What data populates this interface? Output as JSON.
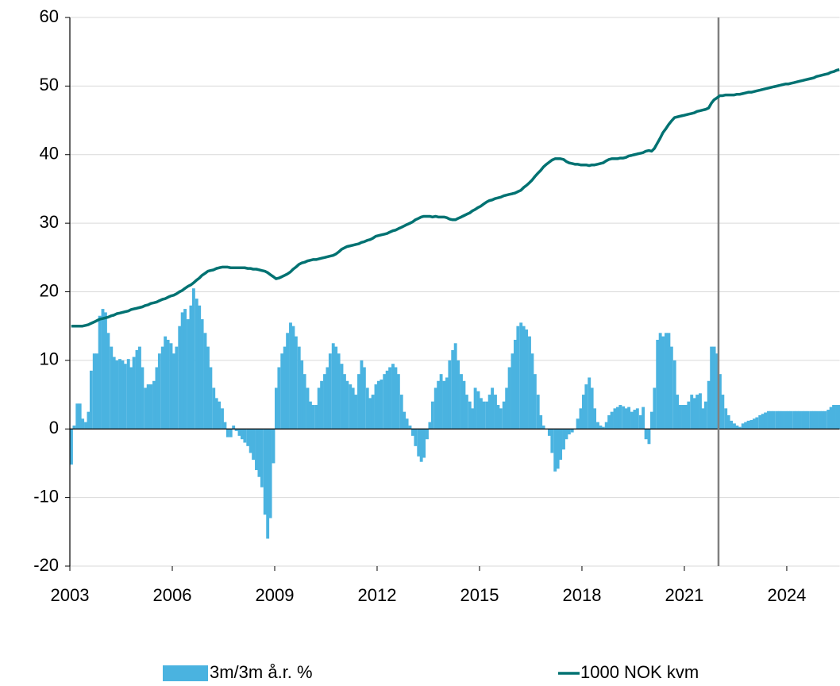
{
  "chart_data": {
    "type": "combo",
    "x": [
      2003,
      2003.08,
      2003.17,
      2003.25,
      2003.33,
      2003.42,
      2003.5,
      2003.58,
      2003.67,
      2003.75,
      2003.83,
      2003.92,
      2004,
      2004.08,
      2004.17,
      2004.25,
      2004.33,
      2004.42,
      2004.5,
      2004.58,
      2004.67,
      2004.75,
      2004.83,
      2004.92,
      2005,
      2005.08,
      2005.17,
      2005.25,
      2005.33,
      2005.42,
      2005.5,
      2005.58,
      2005.67,
      2005.75,
      2005.83,
      2005.92,
      2006,
      2006.08,
      2006.17,
      2006.25,
      2006.33,
      2006.42,
      2006.5,
      2006.58,
      2006.67,
      2006.75,
      2006.83,
      2006.92,
      2007,
      2007.08,
      2007.17,
      2007.25,
      2007.33,
      2007.42,
      2007.5,
      2007.58,
      2007.67,
      2007.75,
      2007.83,
      2007.92,
      2008,
      2008.08,
      2008.17,
      2008.25,
      2008.33,
      2008.42,
      2008.5,
      2008.58,
      2008.67,
      2008.75,
      2008.83,
      2008.92,
      2009,
      2009.08,
      2009.17,
      2009.25,
      2009.33,
      2009.42,
      2009.5,
      2009.58,
      2009.67,
      2009.75,
      2009.83,
      2009.92,
      2010,
      2010.08,
      2010.17,
      2010.25,
      2010.33,
      2010.42,
      2010.5,
      2010.58,
      2010.67,
      2010.75,
      2010.83,
      2010.92,
      2011,
      2011.08,
      2011.17,
      2011.25,
      2011.33,
      2011.42,
      2011.5,
      2011.58,
      2011.67,
      2011.75,
      2011.83,
      2011.92,
      2012,
      2012.08,
      2012.17,
      2012.25,
      2012.33,
      2012.42,
      2012.5,
      2012.58,
      2012.67,
      2012.75,
      2012.83,
      2012.92,
      2013,
      2013.08,
      2013.17,
      2013.25,
      2013.33,
      2013.42,
      2013.5,
      2013.58,
      2013.67,
      2013.75,
      2013.83,
      2013.92,
      2014,
      2014.08,
      2014.17,
      2014.25,
      2014.33,
      2014.42,
      2014.5,
      2014.58,
      2014.67,
      2014.75,
      2014.83,
      2014.92,
      2015,
      2015.08,
      2015.17,
      2015.25,
      2015.33,
      2015.42,
      2015.5,
      2015.58,
      2015.67,
      2015.75,
      2015.83,
      2015.92,
      2016,
      2016.08,
      2016.17,
      2016.25,
      2016.33,
      2016.42,
      2016.5,
      2016.58,
      2016.67,
      2016.75,
      2016.83,
      2016.92,
      2017,
      2017.08,
      2017.17,
      2017.25,
      2017.33,
      2017.42,
      2017.5,
      2017.58,
      2017.67,
      2017.75,
      2017.83,
      2017.92,
      2018,
      2018.08,
      2018.17,
      2018.25,
      2018.33,
      2018.42,
      2018.5,
      2018.58,
      2018.67,
      2018.75,
      2018.83,
      2018.92,
      2019,
      2019.08,
      2019.17,
      2019.25,
      2019.33,
      2019.42,
      2019.5,
      2019.58,
      2019.67,
      2019.75,
      2019.83,
      2019.92,
      2020,
      2020.08,
      2020.17,
      2020.25,
      2020.33,
      2020.42,
      2020.5,
      2020.58,
      2020.67,
      2020.75,
      2020.83,
      2020.92,
      2021,
      2021.08,
      2021.17,
      2021.25,
      2021.33,
      2021.42,
      2021.5,
      2021.58,
      2021.67,
      2021.75,
      2021.83,
      2021.92,
      2022,
      2022.08,
      2022.17,
      2022.25,
      2022.33,
      2022.42,
      2022.5,
      2022.58,
      2022.67,
      2022.75,
      2022.83,
      2022.92,
      2023,
      2023.08,
      2023.17,
      2023.25,
      2023.33,
      2023.42,
      2023.5,
      2023.58,
      2023.67,
      2023.75,
      2023.83,
      2023.92,
      2024,
      2024.08,
      2024.17,
      2024.25,
      2024.33,
      2024.42,
      2024.5,
      2024.58,
      2024.67,
      2024.75,
      2024.83,
      2024.92,
      2025,
      2025.08,
      2025.17,
      2025.25,
      2025.33,
      2025.42,
      2025.5
    ],
    "series": [
      {
        "name": "3m/3m å.r. %",
        "type": "bar",
        "color": "#4ab3e0",
        "values": [
          -5.2,
          0.5,
          3.7,
          3.7,
          1.5,
          1,
          2.5,
          8.5,
          11,
          11,
          16.5,
          17.5,
          17,
          14,
          12,
          10.5,
          10,
          10.2,
          10,
          9.5,
          10.2,
          9,
          10.5,
          11.5,
          12,
          9,
          6,
          6.5,
          6.5,
          7,
          9,
          11,
          12,
          13.5,
          13,
          12.5,
          11,
          12,
          15,
          17,
          17.5,
          16,
          18,
          20.5,
          19,
          18,
          16,
          14,
          12,
          9,
          6,
          4.5,
          4,
          3,
          1,
          -1.2,
          -1.2,
          0.5,
          -0.3,
          -1,
          -1.5,
          -2,
          -2.5,
          -3.5,
          -4.5,
          -6,
          -7,
          -8.5,
          -12.5,
          -16,
          -13,
          -5,
          6,
          9,
          11,
          12,
          14,
          15.5,
          15,
          13.5,
          12,
          10,
          8,
          6,
          4,
          3.5,
          3.5,
          6,
          7,
          8,
          9,
          11,
          12.5,
          12,
          11,
          9.5,
          8,
          7,
          6.5,
          6,
          5,
          8,
          10,
          9,
          6,
          4.5,
          5,
          6.5,
          7,
          7.2,
          8,
          8.5,
          9,
          9.5,
          9,
          8,
          5,
          2.5,
          1.5,
          0.5,
          -1,
          -2.5,
          -4,
          -4.8,
          -4.2,
          -1.5,
          1,
          4,
          6,
          7,
          8,
          7,
          7.5,
          10,
          11.5,
          12.5,
          10,
          8,
          7,
          5,
          4,
          3,
          6,
          5.5,
          4.5,
          4,
          4,
          5,
          6,
          5,
          3.5,
          3,
          4,
          6,
          9,
          11,
          13,
          15,
          15.5,
          15,
          14.5,
          13.5,
          11,
          8,
          5,
          2,
          0.5,
          0,
          -1,
          -3.5,
          -6.2,
          -5.8,
          -4.5,
          -3,
          -1.5,
          -0.8,
          -0.5,
          0,
          1.5,
          3,
          5,
          6.5,
          7.5,
          6,
          3,
          1,
          0.5,
          0.3,
          1,
          2,
          2.5,
          3,
          3.2,
          3.5,
          3.3,
          3,
          3.2,
          2.5,
          2.8,
          3,
          2,
          3.2,
          -1.5,
          -2.2,
          2.5,
          6,
          13,
          14,
          13.5,
          14,
          14,
          12,
          10,
          5,
          3.5,
          3.5,
          3.5,
          4,
          5,
          4.5,
          5,
          5.2,
          3,
          4,
          7,
          12,
          12,
          11,
          8,
          5,
          3,
          2,
          1.2,
          0.8,
          0.5,
          0.3,
          0.8,
          1,
          1.2,
          1.3,
          1.5,
          1.7,
          2,
          2.2,
          2.4,
          2.6,
          2.6,
          2.6,
          2.6,
          2.6,
          2.6,
          2.6,
          2.6,
          2.6,
          2.6,
          2.6,
          2.6,
          2.6,
          2.6,
          2.6,
          2.6,
          2.6,
          2.6,
          2.6,
          2.6,
          2.6,
          2.8,
          3.2,
          3.5,
          3.5,
          3.5
        ]
      },
      {
        "name": "1000 NOK kvm",
        "type": "line",
        "color": "#007272",
        "values": [
          15,
          15,
          15,
          15,
          15,
          15.1,
          15.2,
          15.4,
          15.6,
          15.8,
          16,
          16.1,
          16.2,
          16.3,
          16.5,
          16.6,
          16.8,
          16.9,
          17,
          17.1,
          17.2,
          17.4,
          17.5,
          17.6,
          17.7,
          17.8,
          18,
          18.1,
          18.3,
          18.4,
          18.5,
          18.7,
          18.9,
          19,
          19.2,
          19.4,
          19.5,
          19.7,
          20,
          20.2,
          20.5,
          20.8,
          21,
          21.3,
          21.7,
          22,
          22.4,
          22.7,
          23,
          23.1,
          23.2,
          23.4,
          23.5,
          23.6,
          23.6,
          23.6,
          23.5,
          23.5,
          23.5,
          23.5,
          23.5,
          23.5,
          23.4,
          23.4,
          23.3,
          23.3,
          23.2,
          23.1,
          23,
          22.8,
          22.5,
          22.2,
          21.9,
          22,
          22.2,
          22.4,
          22.6,
          22.9,
          23.3,
          23.6,
          24,
          24.2,
          24.3,
          24.5,
          24.6,
          24.7,
          24.7,
          24.8,
          24.9,
          25,
          25.1,
          25.2,
          25.3,
          25.5,
          25.8,
          26.2,
          26.4,
          26.6,
          26.7,
          26.8,
          26.9,
          27,
          27.2,
          27.3,
          27.5,
          27.6,
          27.8,
          28.1,
          28.2,
          28.3,
          28.4,
          28.5,
          28.7,
          28.9,
          29,
          29.2,
          29.4,
          29.6,
          29.8,
          30,
          30.2,
          30.5,
          30.7,
          30.9,
          31,
          31,
          31,
          30.9,
          31,
          30.9,
          30.9,
          30.9,
          30.8,
          30.6,
          30.5,
          30.5,
          30.7,
          30.9,
          31.1,
          31.3,
          31.5,
          31.8,
          32,
          32.3,
          32.5,
          32.8,
          33.1,
          33.3,
          33.4,
          33.6,
          33.7,
          33.8,
          34,
          34.1,
          34.2,
          34.3,
          34.4,
          34.6,
          34.8,
          35.2,
          35.5,
          35.9,
          36.3,
          36.8,
          37.3,
          37.7,
          38.2,
          38.6,
          38.9,
          39.2,
          39.4,
          39.4,
          39.4,
          39.3,
          39,
          38.8,
          38.7,
          38.6,
          38.6,
          38.5,
          38.5,
          38.5,
          38.4,
          38.5,
          38.5,
          38.6,
          38.7,
          38.8,
          39.1,
          39.3,
          39.4,
          39.4,
          39.4,
          39.5,
          39.5,
          39.6,
          39.8,
          39.9,
          40,
          40.1,
          40.2,
          40.3,
          40.5,
          40.6,
          40.5,
          40.9,
          41.7,
          42.4,
          43.2,
          43.8,
          44.4,
          44.9,
          45.4,
          45.5,
          45.6,
          45.7,
          45.8,
          45.9,
          46,
          46.1,
          46.3,
          46.4,
          46.5,
          46.6,
          46.8,
          47.5,
          48,
          48.3,
          48.6,
          48.6,
          48.7,
          48.7,
          48.7,
          48.7,
          48.8,
          48.8,
          48.9,
          49,
          49.1,
          49.1,
          49.2,
          49.3,
          49.4,
          49.5,
          49.6,
          49.7,
          49.8,
          49.9,
          50,
          50.1,
          50.2,
          50.3,
          50.3,
          50.4,
          50.5,
          50.6,
          50.7,
          50.8,
          50.9,
          51,
          51.1,
          51.2,
          51.4,
          51.5,
          51.6,
          51.7,
          51.8,
          52,
          52.1,
          52.3,
          52.4
        ]
      }
    ],
    "xlim": [
      2003,
      2025.55
    ],
    "xticks": [
      2003,
      2006,
      2009,
      2012,
      2015,
      2018,
      2021,
      2024
    ],
    "ylim": [
      -20,
      60
    ],
    "yticks": [
      -20,
      -10,
      0,
      10,
      20,
      30,
      40,
      50,
      60
    ],
    "grid": true,
    "vertical_line": 2022,
    "legend": "bottom"
  }
}
